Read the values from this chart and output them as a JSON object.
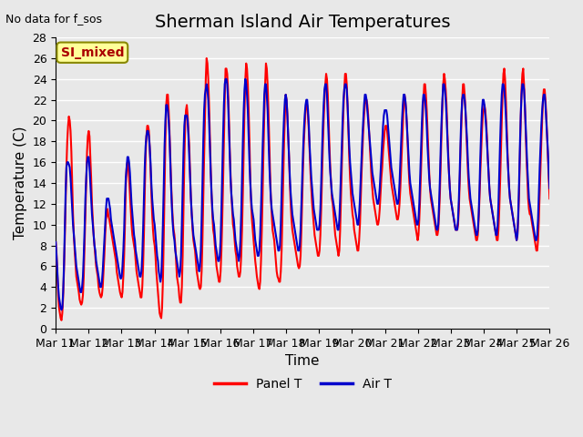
{
  "title": "Sherman Island Air Temperatures",
  "ylabel": "Temperature (C)",
  "xlabel": "Time",
  "note": "No data for f_sos",
  "legend_label": "SI_mixed",
  "ylim": [
    0,
    28
  ],
  "yticks": [
    0,
    2,
    4,
    6,
    8,
    10,
    12,
    14,
    16,
    18,
    20,
    22,
    24,
    26,
    28
  ],
  "xtick_labels": [
    "Mar 11",
    "Mar 12",
    "Mar 13",
    "Mar 14",
    "Mar 15",
    "Mar 16",
    "Mar 17",
    "Mar 18",
    "Mar 19",
    "Mar 20",
    "Mar 21",
    "Mar 22",
    "Mar 23",
    "Mar 24",
    "Mar 25",
    "Mar 26"
  ],
  "panel_T_color": "#FF0000",
  "air_T_color": "#0000CC",
  "bg_color": "#E8E8E8",
  "grid_color": "#FFFFFF",
  "legend_box_color": "#FFFF99",
  "legend_text_color": "#AA0000",
  "title_fontsize": 14,
  "axis_fontsize": 11,
  "tick_fontsize": 9,
  "line_width": 1.5,
  "panel_T": [
    8.3,
    7.2,
    5.1,
    3.2,
    2.0,
    1.5,
    1.0,
    0.8,
    1.5,
    3.0,
    5.5,
    8.5,
    12.0,
    15.5,
    18.0,
    19.5,
    20.4,
    20.0,
    19.0,
    17.0,
    14.0,
    11.0,
    9.0,
    7.5,
    6.2,
    5.0,
    4.5,
    4.0,
    3.5,
    2.8,
    2.5,
    2.3,
    2.5,
    3.2,
    5.0,
    8.0,
    11.0,
    14.0,
    17.0,
    18.5,
    19.0,
    18.5,
    16.5,
    14.5,
    12.0,
    10.5,
    9.0,
    8.0,
    7.0,
    6.0,
    5.5,
    5.0,
    4.0,
    3.5,
    3.2,
    3.0,
    3.2,
    4.0,
    5.5,
    7.0,
    9.0,
    10.5,
    11.0,
    11.5,
    10.8,
    10.5,
    10.0,
    9.5,
    9.0,
    8.5,
    8.0,
    7.5,
    7.0,
    6.5,
    5.5,
    5.0,
    4.5,
    4.0,
    3.5,
    3.2,
    3.0,
    3.5,
    5.0,
    7.0,
    10.0,
    13.5,
    15.5,
    16.0,
    15.5,
    14.5,
    13.0,
    11.5,
    10.0,
    9.0,
    8.5,
    8.0,
    7.5,
    6.5,
    5.5,
    5.0,
    4.5,
    4.0,
    3.5,
    3.0,
    3.0,
    4.0,
    6.0,
    9.0,
    13.0,
    16.5,
    18.5,
    19.5,
    19.5,
    19.0,
    17.5,
    15.5,
    13.0,
    11.0,
    9.5,
    8.5,
    8.0,
    7.0,
    5.5,
    4.5,
    3.5,
    2.5,
    1.5,
    1.2,
    1.0,
    2.0,
    4.5,
    8.5,
    13.5,
    18.0,
    21.5,
    22.5,
    22.5,
    21.0,
    19.0,
    16.5,
    14.0,
    12.0,
    10.5,
    9.5,
    9.0,
    8.0,
    6.5,
    5.0,
    4.5,
    4.0,
    3.0,
    2.5,
    2.5,
    4.0,
    7.0,
    11.5,
    16.0,
    19.5,
    21.0,
    21.5,
    20.5,
    19.0,
    17.5,
    15.0,
    12.5,
    11.0,
    9.5,
    8.5,
    8.0,
    7.5,
    6.5,
    5.5,
    5.0,
    4.5,
    4.0,
    3.8,
    4.0,
    5.5,
    8.5,
    12.5,
    16.5,
    20.0,
    24.0,
    26.0,
    25.5,
    24.0,
    21.5,
    18.5,
    15.5,
    13.0,
    11.0,
    9.5,
    9.0,
    8.0,
    7.0,
    6.0,
    5.5,
    5.0,
    4.5,
    4.5,
    5.5,
    7.5,
    10.5,
    14.0,
    18.0,
    22.0,
    25.0,
    25.0,
    24.5,
    23.0,
    20.5,
    17.5,
    15.0,
    13.0,
    11.5,
    10.0,
    9.5,
    8.5,
    7.5,
    7.0,
    6.0,
    5.5,
    5.0,
    5.0,
    5.5,
    7.0,
    9.5,
    13.0,
    17.0,
    21.0,
    24.0,
    25.5,
    25.0,
    23.5,
    21.0,
    18.0,
    14.5,
    12.0,
    10.5,
    9.5,
    8.5,
    7.5,
    6.5,
    5.8,
    5.0,
    4.5,
    4.0,
    3.8,
    4.5,
    6.5,
    9.5,
    13.0,
    17.0,
    20.5,
    23.5,
    25.5,
    25.0,
    23.5,
    21.0,
    18.0,
    15.0,
    12.5,
    11.0,
    9.5,
    9.0,
    8.5,
    7.5,
    6.5,
    5.5,
    5.0,
    4.8,
    4.5,
    4.5,
    5.5,
    7.5,
    11.0,
    14.5,
    18.0,
    20.5,
    22.5,
    22.0,
    20.5,
    18.5,
    16.5,
    14.0,
    12.0,
    10.5,
    9.5,
    9.0,
    8.5,
    8.0,
    7.5,
    7.0,
    6.5,
    6.0,
    5.8,
    6.0,
    7.0,
    9.5,
    12.5,
    15.5,
    18.0,
    19.5,
    21.0,
    21.5,
    21.5,
    20.5,
    19.0,
    17.0,
    15.0,
    13.5,
    12.0,
    11.0,
    10.0,
    9.0,
    8.5,
    8.0,
    7.5,
    7.0,
    7.0,
    7.5,
    9.0,
    11.5,
    14.5,
    17.5,
    20.0,
    22.0,
    23.5,
    24.5,
    24.0,
    22.5,
    20.0,
    17.5,
    15.5,
    14.0,
    12.5,
    12.0,
    11.0,
    10.0,
    9.0,
    8.5,
    8.0,
    7.5,
    7.0,
    7.5,
    9.5,
    12.5,
    15.5,
    18.5,
    21.0,
    23.0,
    24.5,
    24.5,
    23.5,
    21.5,
    19.0,
    16.5,
    14.5,
    13.0,
    12.0,
    11.0,
    10.5,
    9.5,
    9.0,
    8.5,
    8.0,
    7.5,
    7.5,
    8.5,
    10.0,
    12.5,
    15.0,
    17.0,
    19.0,
    20.5,
    21.5,
    22.0,
    22.0,
    21.5,
    20.5,
    19.0,
    17.5,
    16.0,
    14.5,
    13.5,
    12.5,
    12.0,
    11.5,
    11.0,
    10.5,
    10.0,
    10.0,
    10.5,
    11.5,
    13.0,
    14.5,
    15.5,
    17.0,
    18.0,
    19.0,
    19.5,
    19.5,
    19.0,
    18.0,
    17.0,
    16.0,
    15.0,
    14.0,
    13.5,
    13.0,
    12.5,
    12.0,
    11.5,
    11.0,
    10.5,
    10.5,
    11.0,
    12.0,
    13.5,
    15.5,
    17.5,
    19.5,
    21.5,
    22.5,
    22.0,
    21.0,
    19.5,
    17.5,
    15.5,
    14.0,
    13.0,
    12.5,
    12.0,
    11.5,
    11.0,
    10.5,
    10.0,
    9.5,
    9.0,
    8.5,
    9.0,
    10.5,
    12.5,
    15.0,
    17.5,
    20.0,
    22.0,
    23.5,
    23.5,
    22.5,
    21.0,
    19.0,
    17.0,
    15.0,
    13.5,
    12.5,
    12.0,
    11.5,
    11.0,
    10.5,
    10.0,
    9.5,
    9.0,
    9.0,
    9.5,
    11.0,
    13.0,
    16.0,
    19.0,
    21.5,
    23.5,
    24.5,
    24.0,
    23.0,
    21.5,
    19.0,
    17.0,
    15.0,
    13.5,
    12.5,
    12.0,
    11.5,
    11.0,
    10.5,
    10.0,
    9.5,
    9.5,
    9.5,
    10.0,
    11.5,
    14.0,
    17.0,
    19.5,
    22.0,
    23.5,
    23.5,
    22.5,
    21.0,
    19.0,
    17.0,
    15.0,
    13.5,
    12.5,
    12.0,
    11.5,
    11.0,
    10.5,
    10.0,
    9.5,
    9.0,
    8.5,
    8.5,
    9.0,
    10.5,
    12.5,
    15.0,
    17.0,
    19.0,
    20.5,
    21.0,
    21.5,
    21.0,
    20.0,
    18.5,
    16.5,
    15.0,
    13.5,
    12.5,
    12.0,
    11.5,
    11.0,
    10.5,
    10.0,
    9.5,
    9.0,
    8.5,
    8.5,
    9.5,
    11.5,
    14.0,
    17.0,
    20.0,
    22.5,
    24.5,
    25.0,
    24.0,
    22.0,
    19.5,
    17.0,
    15.0,
    13.5,
    12.5,
    12.0,
    11.5,
    11.0,
    10.5,
    10.0,
    9.5,
    9.0,
    8.5,
    9.0,
    10.5,
    13.0,
    16.5,
    20.0,
    23.0,
    24.5,
    25.0,
    23.5,
    21.5,
    19.0,
    16.5,
    14.5,
    12.5,
    11.5,
    11.0,
    11.0,
    10.5,
    10.0,
    9.5,
    9.0,
    8.5,
    8.0,
    7.5,
    7.5,
    8.5,
    10.5,
    13.0,
    15.5,
    18.0,
    20.0,
    22.0,
    23.0,
    23.0,
    22.0,
    20.5,
    18.5,
    16.5,
    14.5,
    12.5
  ],
  "air_T": [
    8.3,
    7.0,
    5.5,
    4.0,
    3.0,
    2.5,
    2.0,
    1.8,
    2.0,
    3.5,
    6.0,
    9.5,
    13.0,
    15.5,
    16.0,
    16.0,
    15.8,
    15.5,
    14.5,
    13.0,
    11.5,
    10.0,
    9.0,
    8.0,
    7.0,
    6.0,
    5.5,
    5.0,
    4.5,
    4.0,
    3.5,
    3.5,
    4.0,
    5.0,
    7.0,
    9.5,
    12.5,
    14.5,
    16.0,
    16.5,
    16.5,
    15.5,
    14.0,
    12.5,
    11.0,
    10.0,
    9.0,
    8.0,
    7.5,
    6.5,
    6.0,
    5.5,
    5.0,
    4.5,
    4.0,
    4.0,
    4.5,
    5.5,
    7.0,
    8.5,
    10.0,
    11.5,
    12.5,
    12.5,
    12.5,
    12.0,
    11.5,
    10.5,
    10.0,
    9.5,
    9.0,
    8.5,
    8.0,
    7.5,
    7.0,
    6.5,
    6.0,
    5.5,
    5.0,
    4.8,
    5.0,
    6.0,
    7.5,
    9.5,
    12.5,
    14.5,
    15.5,
    16.5,
    16.5,
    16.0,
    15.0,
    13.5,
    12.0,
    11.0,
    10.0,
    9.0,
    8.5,
    7.5,
    7.0,
    6.5,
    6.0,
    5.5,
    5.0,
    5.0,
    5.5,
    7.0,
    9.5,
    12.5,
    15.5,
    17.5,
    18.5,
    19.0,
    19.0,
    18.5,
    17.5,
    16.0,
    14.0,
    12.5,
    11.5,
    10.5,
    10.0,
    9.0,
    8.0,
    7.0,
    6.5,
    5.5,
    5.0,
    4.5,
    5.0,
    7.0,
    10.0,
    13.5,
    17.5,
    20.0,
    21.5,
    21.5,
    21.0,
    20.0,
    18.5,
    16.0,
    13.5,
    11.5,
    10.0,
    9.0,
    8.5,
    7.5,
    7.0,
    6.5,
    6.0,
    5.5,
    5.0,
    5.5,
    7.0,
    10.0,
    13.5,
    17.0,
    19.5,
    20.5,
    20.5,
    20.5,
    20.0,
    18.5,
    16.5,
    14.5,
    12.5,
    11.0,
    10.0,
    9.0,
    8.5,
    8.0,
    7.5,
    7.0,
    6.5,
    6.0,
    5.5,
    6.0,
    7.5,
    10.5,
    14.0,
    18.0,
    21.0,
    22.5,
    23.0,
    23.5,
    23.0,
    22.0,
    20.0,
    17.5,
    15.0,
    13.0,
    11.5,
    10.5,
    10.0,
    9.0,
    8.0,
    7.5,
    7.0,
    6.5,
    6.5,
    7.0,
    8.5,
    11.5,
    15.0,
    18.5,
    21.5,
    23.5,
    24.0,
    24.0,
    23.5,
    22.0,
    19.5,
    17.0,
    14.5,
    13.0,
    12.0,
    11.0,
    10.5,
    9.5,
    8.5,
    8.0,
    7.5,
    7.0,
    6.5,
    7.0,
    8.5,
    11.0,
    14.5,
    18.0,
    21.0,
    23.0,
    24.0,
    23.5,
    22.5,
    21.0,
    18.5,
    16.0,
    14.0,
    12.5,
    11.5,
    11.0,
    10.5,
    9.5,
    8.5,
    8.0,
    7.5,
    7.0,
    7.0,
    7.5,
    9.0,
    11.5,
    14.5,
    17.5,
    20.0,
    22.5,
    23.5,
    23.5,
    22.5,
    21.0,
    18.5,
    16.0,
    14.0,
    12.5,
    11.5,
    11.0,
    10.5,
    10.0,
    9.5,
    9.0,
    8.5,
    8.0,
    7.5,
    7.5,
    8.0,
    10.0,
    13.0,
    16.0,
    18.5,
    20.5,
    22.0,
    22.5,
    22.0,
    20.5,
    18.5,
    16.5,
    14.5,
    13.0,
    12.0,
    11.0,
    10.5,
    10.0,
    9.5,
    9.0,
    8.5,
    8.0,
    7.5,
    7.5,
    8.0,
    9.5,
    12.0,
    14.5,
    17.0,
    19.0,
    20.5,
    21.5,
    22.0,
    22.0,
    21.0,
    19.5,
    17.5,
    16.0,
    14.5,
    13.5,
    12.5,
    11.5,
    11.0,
    10.5,
    10.0,
    9.5,
    9.5,
    9.5,
    10.0,
    11.5,
    14.0,
    17.0,
    19.5,
    21.5,
    23.0,
    23.5,
    23.5,
    22.5,
    20.5,
    18.5,
    16.5,
    15.0,
    14.0,
    13.0,
    12.5,
    12.0,
    11.5,
    11.0,
    10.5,
    10.0,
    9.5,
    9.5,
    10.5,
    12.5,
    15.0,
    17.5,
    20.0,
    22.0,
    23.0,
    23.5,
    23.5,
    23.0,
    21.5,
    19.5,
    17.5,
    16.0,
    15.0,
    14.0,
    13.0,
    12.5,
    12.0,
    11.5,
    11.0,
    10.5,
    10.0,
    10.0,
    11.0,
    12.5,
    14.5,
    16.5,
    18.5,
    20.0,
    21.5,
    22.5,
    22.5,
    22.0,
    21.0,
    20.0,
    19.0,
    18.0,
    17.0,
    16.0,
    15.0,
    14.5,
    14.0,
    13.5,
    13.0,
    12.5,
    12.0,
    12.0,
    12.5,
    13.5,
    15.0,
    16.5,
    18.0,
    19.5,
    20.5,
    21.0,
    21.0,
    21.0,
    20.5,
    19.5,
    18.5,
    17.5,
    16.5,
    15.5,
    15.0,
    14.5,
    14.0,
    13.5,
    13.0,
    12.5,
    12.0,
    12.0,
    12.5,
    14.0,
    16.0,
    18.0,
    20.0,
    21.5,
    22.5,
    22.5,
    22.0,
    21.0,
    19.5,
    18.0,
    16.5,
    15.0,
    14.0,
    13.5,
    13.0,
    12.5,
    12.0,
    11.5,
    11.0,
    10.5,
    10.0,
    10.0,
    10.5,
    12.0,
    14.5,
    17.0,
    19.5,
    21.5,
    22.5,
    22.5,
    22.0,
    21.0,
    19.5,
    17.5,
    16.0,
    14.5,
    13.5,
    13.0,
    12.5,
    12.0,
    11.5,
    11.0,
    10.5,
    10.0,
    9.5,
    9.5,
    10.0,
    12.0,
    14.5,
    17.5,
    20.0,
    22.0,
    23.5,
    23.5,
    23.0,
    22.0,
    20.5,
    18.5,
    16.5,
    15.0,
    13.5,
    12.5,
    12.0,
    11.5,
    11.0,
    10.5,
    10.0,
    9.5,
    9.5,
    9.5,
    10.5,
    12.5,
    15.0,
    18.0,
    20.5,
    22.0,
    22.5,
    22.5,
    22.0,
    21.0,
    19.5,
    18.0,
    16.0,
    14.5,
    13.5,
    12.5,
    12.0,
    11.5,
    11.0,
    10.5,
    10.0,
    9.5,
    9.0,
    9.0,
    9.5,
    11.0,
    13.5,
    16.5,
    19.0,
    21.0,
    22.0,
    22.0,
    21.5,
    20.5,
    19.5,
    18.0,
    16.5,
    15.0,
    13.5,
    12.5,
    12.0,
    11.5,
    11.0,
    10.5,
    10.0,
    9.5,
    9.0,
    9.0,
    10.0,
    12.0,
    15.0,
    18.0,
    20.5,
    22.5,
    23.5,
    23.5,
    23.0,
    22.0,
    20.5,
    18.5,
    16.5,
    15.0,
    13.5,
    12.5,
    12.0,
    11.5,
    11.0,
    10.5,
    10.0,
    9.5,
    9.0,
    8.5,
    9.0,
    11.0,
    14.0,
    17.5,
    20.5,
    22.5,
    23.5,
    23.5,
    23.0,
    21.5,
    19.5,
    17.5,
    15.5,
    14.0,
    12.5,
    12.0,
    11.5,
    11.0,
    10.5,
    10.0,
    9.5,
    9.0,
    8.5,
    8.5,
    9.0,
    10.5,
    13.0,
    15.5,
    17.5,
    19.5,
    21.0,
    22.0,
    22.5,
    22.5,
    21.5,
    20.0,
    18.5,
    17.0,
    15.0,
    13.5
  ]
}
